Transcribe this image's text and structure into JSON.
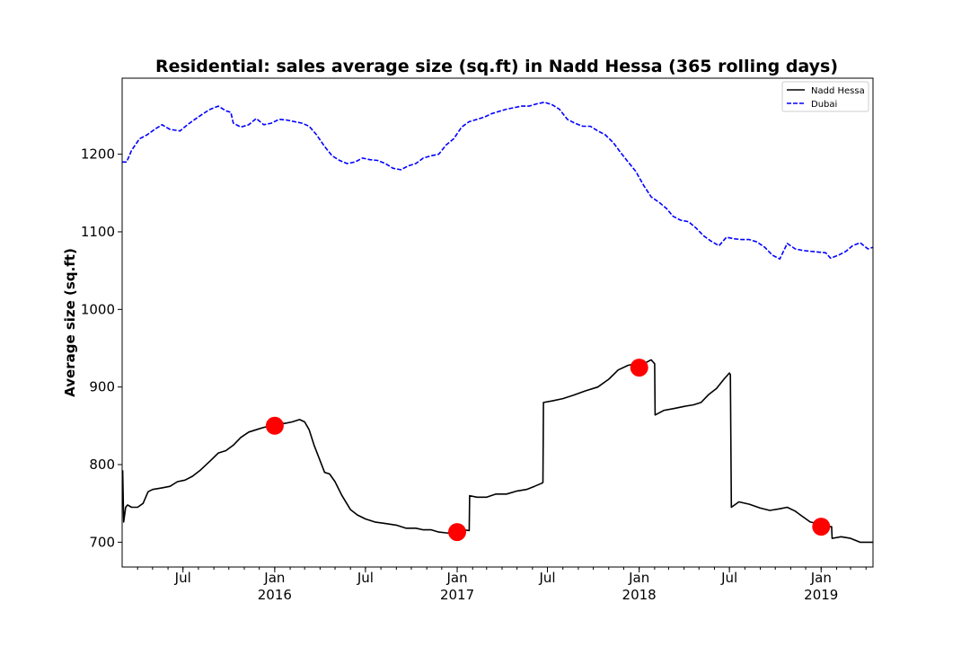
{
  "chart_data": {
    "type": "line",
    "title": "Residential: sales average size (sq.ft) in Nadd Hessa (365 rolling days)",
    "ylabel": "Average size (sq.ft)",
    "xlabel": "",
    "xlim": [
      "2015-03-01",
      "2019-04-15"
    ],
    "ylim": [
      668,
      1298
    ],
    "yticks": [
      700,
      800,
      900,
      1000,
      1100,
      1200
    ],
    "xticks": [
      {
        "date": "2015-07-01",
        "label": "Jul",
        "year": ""
      },
      {
        "date": "2016-01-01",
        "label": "Jan",
        "year": "2016"
      },
      {
        "date": "2016-07-01",
        "label": "Jul",
        "year": ""
      },
      {
        "date": "2017-01-01",
        "label": "Jan",
        "year": "2017"
      },
      {
        "date": "2017-07-01",
        "label": "Jul",
        "year": ""
      },
      {
        "date": "2018-01-01",
        "label": "Jan",
        "year": "2018"
      },
      {
        "date": "2018-07-01",
        "label": "Jul",
        "year": ""
      },
      {
        "date": "2019-01-01",
        "label": "Jan",
        "year": "2019"
      }
    ],
    "legend_position": "top-right",
    "series": [
      {
        "name": "Nadd Hessa",
        "color": "#000000",
        "style": "solid",
        "x": [
          "2015-03-01",
          "2015-03-02",
          "2015-03-04",
          "2015-03-08",
          "2015-03-12",
          "2015-03-20",
          "2015-04-01",
          "2015-04-12",
          "2015-04-22",
          "2015-05-01",
          "2015-05-20",
          "2015-06-05",
          "2015-06-20",
          "2015-07-05",
          "2015-07-20",
          "2015-08-05",
          "2015-08-25",
          "2015-09-10",
          "2015-09-25",
          "2015-10-10",
          "2015-10-25",
          "2015-11-10",
          "2015-11-25",
          "2015-12-10",
          "2015-12-25",
          "2016-01-05",
          "2016-01-20",
          "2016-02-05",
          "2016-02-20",
          "2016-03-01",
          "2016-03-10",
          "2016-03-20",
          "2016-04-01",
          "2016-04-10",
          "2016-04-20",
          "2016-05-01",
          "2016-05-15",
          "2016-06-01",
          "2016-06-15",
          "2016-07-01",
          "2016-07-20",
          "2016-08-10",
          "2016-09-01",
          "2016-09-20",
          "2016-10-10",
          "2016-10-25",
          "2016-11-10",
          "2016-11-25",
          "2016-12-10",
          "2016-12-25",
          "2017-01-05",
          "2017-01-12",
          "2017-01-25",
          "2017-01-26",
          "2017-02-10",
          "2017-03-01",
          "2017-03-20",
          "2017-04-10",
          "2017-05-01",
          "2017-05-20",
          "2017-06-05",
          "2017-06-20",
          "2017-06-22",
          "2017-06-23",
          "2017-07-10",
          "2017-08-01",
          "2017-08-25",
          "2017-09-15",
          "2017-10-10",
          "2017-11-01",
          "2017-11-20",
          "2017-12-10",
          "2017-12-25",
          "2018-01-10",
          "2018-01-25",
          "2018-02-01",
          "2018-02-02",
          "2018-02-20",
          "2018-03-10",
          "2018-04-01",
          "2018-04-20",
          "2018-05-05",
          "2018-05-20",
          "2018-06-05",
          "2018-06-20",
          "2018-07-01",
          "2018-07-03",
          "2018-07-05",
          "2018-07-20",
          "2018-08-10",
          "2018-09-01",
          "2018-09-20",
          "2018-10-10",
          "2018-10-25",
          "2018-11-10",
          "2018-11-25",
          "2018-12-10",
          "2018-12-25",
          "2019-01-10",
          "2019-01-22",
          "2019-01-23",
          "2019-02-10",
          "2019-03-01",
          "2019-03-20",
          "2019-04-15"
        ],
        "y": [
          790,
          792,
          726,
          745,
          748,
          745,
          745,
          750,
          765,
          768,
          770,
          772,
          778,
          780,
          785,
          793,
          805,
          815,
          818,
          825,
          835,
          842,
          845,
          848,
          850,
          855,
          853,
          855,
          858,
          855,
          845,
          825,
          805,
          790,
          788,
          778,
          760,
          742,
          735,
          730,
          726,
          724,
          722,
          718,
          718,
          716,
          716,
          713,
          712,
          711,
          712,
          716,
          715,
          760,
          758,
          758,
          762,
          762,
          766,
          768,
          772,
          776,
          777,
          880,
          882,
          885,
          890,
          895,
          900,
          910,
          922,
          928,
          930,
          930,
          935,
          930,
          864,
          870,
          872,
          875,
          877,
          880,
          890,
          898,
          910,
          918,
          916,
          745,
          752,
          749,
          744,
          741,
          743,
          745,
          740,
          733,
          726,
          724,
          720,
          720,
          705,
          707,
          705,
          700,
          700
        ]
      },
      {
        "name": "Dubai",
        "color": "#0000ff",
        "style": "dashed",
        "x": [
          "2015-03-01",
          "2015-03-10",
          "2015-03-20",
          "2015-04-05",
          "2015-04-20",
          "2015-05-05",
          "2015-05-20",
          "2015-06-05",
          "2015-06-25",
          "2015-07-10",
          "2015-07-25",
          "2015-08-10",
          "2015-08-25",
          "2015-09-10",
          "2015-09-25",
          "2015-10-05",
          "2015-10-10",
          "2015-10-25",
          "2015-11-10",
          "2015-11-25",
          "2015-12-10",
          "2015-12-25",
          "2016-01-10",
          "2016-01-25",
          "2016-02-10",
          "2016-02-25",
          "2016-03-10",
          "2016-03-25",
          "2016-04-10",
          "2016-04-25",
          "2016-05-10",
          "2016-05-25",
          "2016-06-10",
          "2016-06-25",
          "2016-07-10",
          "2016-07-25",
          "2016-08-10",
          "2016-08-25",
          "2016-09-10",
          "2016-09-25",
          "2016-10-10",
          "2016-10-25",
          "2016-11-10",
          "2016-11-25",
          "2016-12-10",
          "2016-12-25",
          "2017-01-10",
          "2017-01-25",
          "2017-02-10",
          "2017-02-25",
          "2017-03-10",
          "2017-03-25",
          "2017-04-10",
          "2017-04-25",
          "2017-05-10",
          "2017-05-25",
          "2017-06-10",
          "2017-06-25",
          "2017-07-10",
          "2017-07-25",
          "2017-08-10",
          "2017-08-25",
          "2017-09-10",
          "2017-09-25",
          "2017-10-10",
          "2017-10-25",
          "2017-11-10",
          "2017-11-25",
          "2017-12-10",
          "2017-12-25",
          "2018-01-10",
          "2018-01-25",
          "2018-02-10",
          "2018-02-25",
          "2018-03-10",
          "2018-03-25",
          "2018-04-10",
          "2018-04-25",
          "2018-05-10",
          "2018-05-25",
          "2018-06-10",
          "2018-06-25",
          "2018-07-10",
          "2018-07-25",
          "2018-08-10",
          "2018-08-25",
          "2018-09-10",
          "2018-09-25",
          "2018-10-10",
          "2018-10-25",
          "2018-11-10",
          "2018-11-25",
          "2018-12-10",
          "2018-12-25",
          "2019-01-10",
          "2019-01-20",
          "2019-02-05",
          "2019-02-20",
          "2019-03-05",
          "2019-03-20",
          "2019-04-05",
          "2019-04-15"
        ],
        "y": [
          1190,
          1190,
          1205,
          1220,
          1225,
          1232,
          1238,
          1232,
          1230,
          1238,
          1245,
          1252,
          1258,
          1262,
          1256,
          1254,
          1240,
          1235,
          1238,
          1246,
          1238,
          1240,
          1245,
          1244,
          1242,
          1240,
          1236,
          1225,
          1210,
          1198,
          1192,
          1188,
          1190,
          1195,
          1193,
          1192,
          1188,
          1182,
          1180,
          1185,
          1188,
          1195,
          1198,
          1200,
          1212,
          1220,
          1235,
          1242,
          1245,
          1248,
          1252,
          1255,
          1258,
          1260,
          1262,
          1262,
          1265,
          1267,
          1264,
          1258,
          1245,
          1240,
          1236,
          1236,
          1230,
          1225,
          1215,
          1202,
          1190,
          1178,
          1160,
          1145,
          1138,
          1130,
          1120,
          1115,
          1113,
          1105,
          1095,
          1088,
          1082,
          1093,
          1091,
          1090,
          1090,
          1087,
          1080,
          1070,
          1065,
          1085,
          1078,
          1076,
          1075,
          1074,
          1073,
          1066,
          1070,
          1075,
          1082,
          1086,
          1078,
          1080
        ]
      }
    ],
    "markers": {
      "color": "#ff0000",
      "x": [
        "2016-01-01",
        "2017-01-01",
        "2018-01-01",
        "2019-01-01"
      ],
      "y": [
        850,
        713,
        925,
        720
      ]
    }
  }
}
